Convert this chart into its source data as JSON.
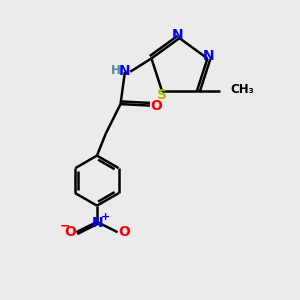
{
  "bg_color": "#ebebeb",
  "bond_color": "#000000",
  "bond_width": 1.8,
  "atom_colors": {
    "N": "#0000ff",
    "O": "#ff0000",
    "S": "#b8b800",
    "H": "#4a9090",
    "C": "#000000"
  },
  "font_size": 10,
  "font_size_small": 8.5
}
